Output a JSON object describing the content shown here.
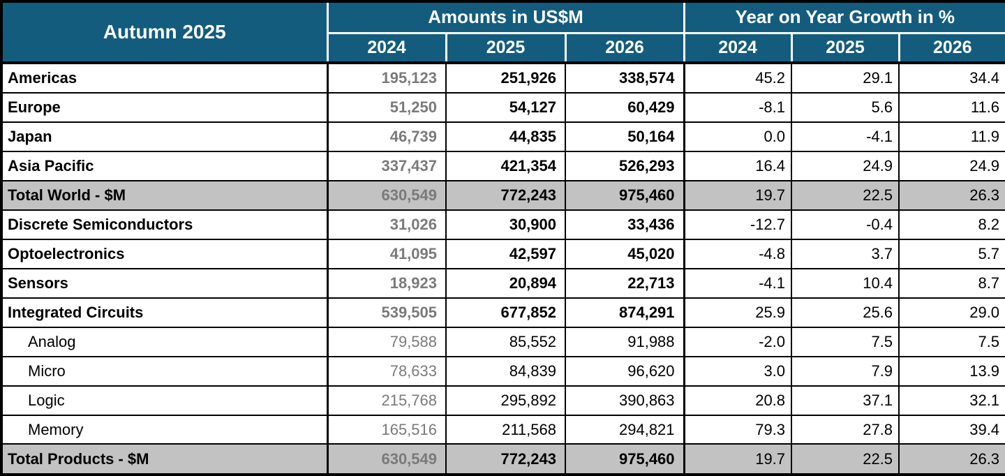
{
  "title": "Autumn 2025",
  "header": {
    "amounts_group": "Amounts in US$M",
    "growth_group": "Year on Year Growth in %",
    "amount_years": [
      "2024",
      "2025",
      "2026"
    ],
    "growth_years": [
      "2024",
      "2025",
      "2026"
    ]
  },
  "colors": {
    "header_bg": "#135C7E",
    "header_text": "#FFFFFF",
    "total_row_bg": "#C2C2C2",
    "muted_text": "#7A7A7A",
    "border": "#000000"
  },
  "rows": [
    {
      "label": "Americas",
      "style": "main",
      "amounts": [
        "195,123",
        "251,926",
        "338,574"
      ],
      "growth": [
        "45.2",
        "29.1",
        "34.4"
      ]
    },
    {
      "label": "Europe",
      "style": "main",
      "amounts": [
        "51,250",
        "54,127",
        "60,429"
      ],
      "growth": [
        "-8.1",
        "5.6",
        "11.6"
      ]
    },
    {
      "label": "Japan",
      "style": "main",
      "amounts": [
        "46,739",
        "44,835",
        "50,164"
      ],
      "growth": [
        "0.0",
        "-4.1",
        "11.9"
      ]
    },
    {
      "label": "Asia Pacific",
      "style": "main",
      "amounts": [
        "337,437",
        "421,354",
        "526,293"
      ],
      "growth": [
        "16.4",
        "24.9",
        "24.9"
      ]
    },
    {
      "label": "Total World - $M",
      "style": "total",
      "amounts": [
        "630,549",
        "772,243",
        "975,460"
      ],
      "growth": [
        "19.7",
        "22.5",
        "26.3"
      ]
    },
    {
      "label": "Discrete Semiconductors",
      "style": "main",
      "amounts": [
        "31,026",
        "30,900",
        "33,436"
      ],
      "growth": [
        "-12.7",
        "-0.4",
        "8.2"
      ]
    },
    {
      "label": "Optoelectronics",
      "style": "main",
      "amounts": [
        "41,095",
        "42,597",
        "45,020"
      ],
      "growth": [
        "-4.8",
        "3.7",
        "5.7"
      ]
    },
    {
      "label": "Sensors",
      "style": "main",
      "amounts": [
        "18,923",
        "20,894",
        "22,713"
      ],
      "growth": [
        "-4.1",
        "10.4",
        "8.7"
      ]
    },
    {
      "label": "Integrated Circuits",
      "style": "main",
      "amounts": [
        "539,505",
        "677,852",
        "874,291"
      ],
      "growth": [
        "25.9",
        "25.6",
        "29.0"
      ]
    },
    {
      "label": "Analog",
      "style": "sub",
      "amounts": [
        "79,588",
        "85,552",
        "91,988"
      ],
      "growth": [
        "-2.0",
        "7.5",
        "7.5"
      ]
    },
    {
      "label": "Micro",
      "style": "sub",
      "amounts": [
        "78,633",
        "84,839",
        "96,620"
      ],
      "growth": [
        "3.0",
        "7.9",
        "13.9"
      ]
    },
    {
      "label": "Logic",
      "style": "sub",
      "amounts": [
        "215,768",
        "295,892",
        "390,863"
      ],
      "growth": [
        "20.8",
        "37.1",
        "32.1"
      ]
    },
    {
      "label": "Memory",
      "style": "sub",
      "amounts": [
        "165,516",
        "211,568",
        "294,821"
      ],
      "growth": [
        "79.3",
        "27.8",
        "39.4"
      ]
    },
    {
      "label": "Total Products - $M",
      "style": "total",
      "amounts": [
        "630,549",
        "772,243",
        "975,460"
      ],
      "growth": [
        "19.7",
        "22.5",
        "26.3"
      ]
    }
  ],
  "chart_data": {
    "type": "table",
    "title": "Autumn 2025",
    "column_groups": [
      "Amounts in US$M",
      "Year on Year Growth in %"
    ],
    "columns": [
      "Amount 2024",
      "Amount 2025",
      "Amount 2026",
      "Growth % 2024",
      "Growth % 2025",
      "Growth % 2026"
    ],
    "rows": [
      {
        "label": "Americas",
        "amounts_usdm": [
          195123,
          251926,
          338574
        ],
        "growth_pct": [
          45.2,
          29.1,
          34.4
        ]
      },
      {
        "label": "Europe",
        "amounts_usdm": [
          51250,
          54127,
          60429
        ],
        "growth_pct": [
          -8.1,
          5.6,
          11.6
        ]
      },
      {
        "label": "Japan",
        "amounts_usdm": [
          46739,
          44835,
          50164
        ],
        "growth_pct": [
          0.0,
          -4.1,
          11.9
        ]
      },
      {
        "label": "Asia Pacific",
        "amounts_usdm": [
          337437,
          421354,
          526293
        ],
        "growth_pct": [
          16.4,
          24.9,
          24.9
        ]
      },
      {
        "label": "Total World - $M",
        "amounts_usdm": [
          630549,
          772243,
          975460
        ],
        "growth_pct": [
          19.7,
          22.5,
          26.3
        ]
      },
      {
        "label": "Discrete Semiconductors",
        "amounts_usdm": [
          31026,
          30900,
          33436
        ],
        "growth_pct": [
          -12.7,
          -0.4,
          8.2
        ]
      },
      {
        "label": "Optoelectronics",
        "amounts_usdm": [
          41095,
          42597,
          45020
        ],
        "growth_pct": [
          -4.8,
          3.7,
          5.7
        ]
      },
      {
        "label": "Sensors",
        "amounts_usdm": [
          18923,
          20894,
          22713
        ],
        "growth_pct": [
          -4.1,
          10.4,
          8.7
        ]
      },
      {
        "label": "Integrated Circuits",
        "amounts_usdm": [
          539505,
          677852,
          874291
        ],
        "growth_pct": [
          25.9,
          25.6,
          29.0
        ]
      },
      {
        "label": "Analog",
        "amounts_usdm": [
          79588,
          85552,
          91988
        ],
        "growth_pct": [
          -2.0,
          7.5,
          7.5
        ]
      },
      {
        "label": "Micro",
        "amounts_usdm": [
          78633,
          84839,
          96620
        ],
        "growth_pct": [
          3.0,
          7.9,
          13.9
        ]
      },
      {
        "label": "Logic",
        "amounts_usdm": [
          215768,
          295892,
          390863
        ],
        "growth_pct": [
          20.8,
          37.1,
          32.1
        ]
      },
      {
        "label": "Memory",
        "amounts_usdm": [
          165516,
          211568,
          294821
        ],
        "growth_pct": [
          79.3,
          27.8,
          39.4
        ]
      },
      {
        "label": "Total Products - $M",
        "amounts_usdm": [
          630549,
          772243,
          975460
        ],
        "growth_pct": [
          19.7,
          22.5,
          26.3
        ]
      }
    ]
  }
}
